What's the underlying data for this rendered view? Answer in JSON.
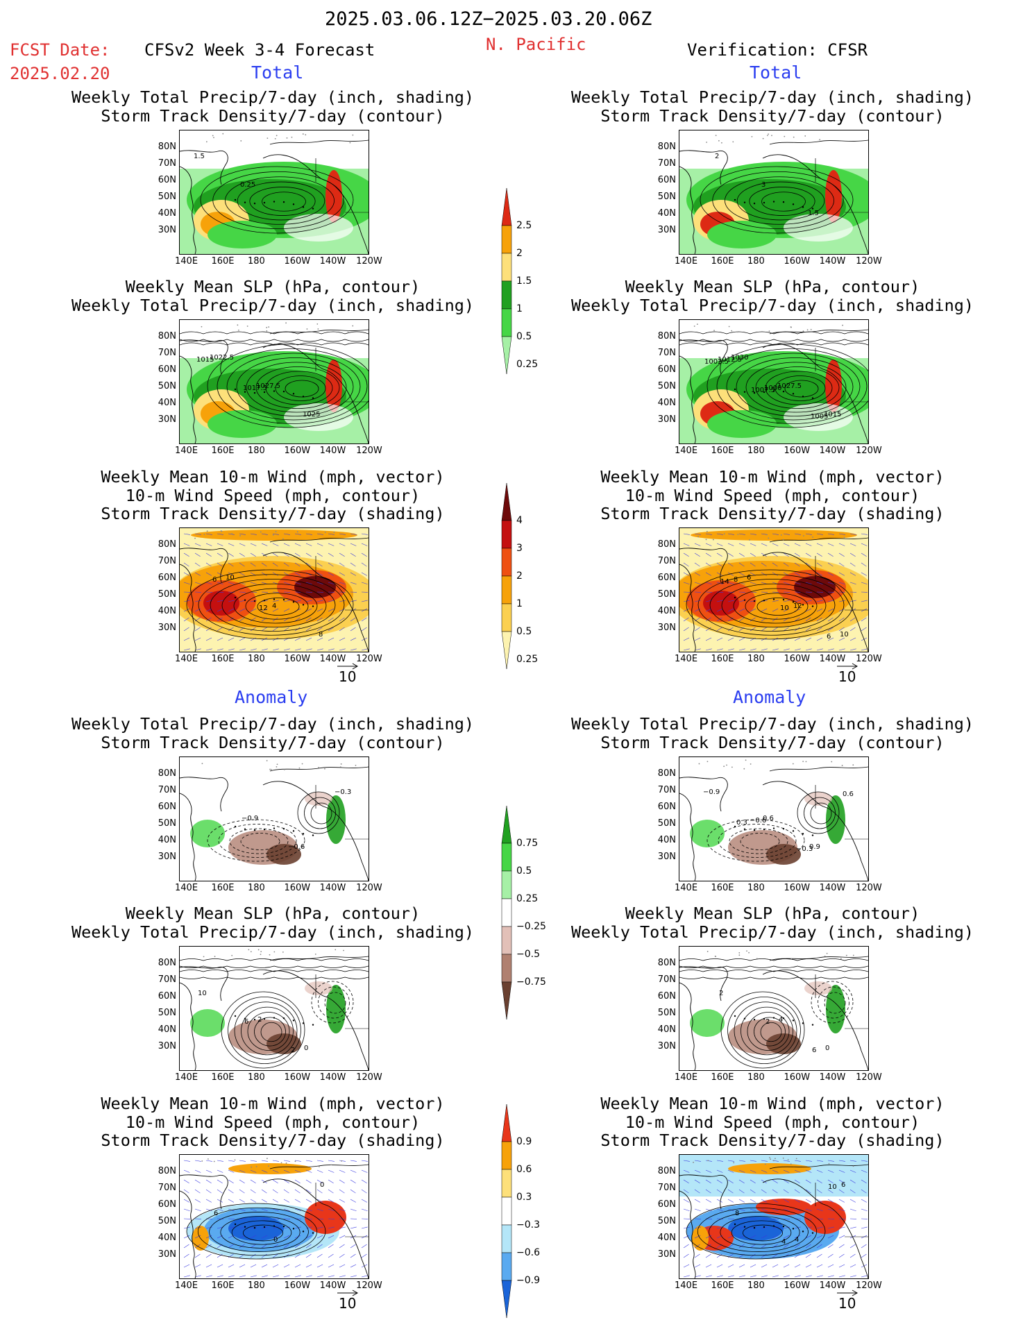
{
  "header": {
    "period": "2025.03.06.12Z−2025.03.20.06Z",
    "fcst_label": "FCST Date:",
    "fcst_date": "2025.02.20",
    "product": "CFSv2 Week 3-4 Forecast",
    "region": "N. Pacific",
    "verification": "Verification: CFSR"
  },
  "sections": {
    "total": "Total",
    "anomaly": "Anomaly"
  },
  "titles": {
    "precip_storm": [
      "Weekly Total Precip/7-day (inch, shading)",
      "Storm Track Density/7-day (contour)"
    ],
    "slp_precip": [
      "Weekly Mean SLP (hPa, contour)",
      "Weekly Total Precip/7-day (inch, shading)"
    ],
    "wind_storm": [
      "Weekly Mean 10-m Wind (mph, vector)",
      "10-m Wind Speed (mph, contour)",
      "Storm Track Density/7-day (shading)"
    ]
  },
  "axes": {
    "lat_labels": [
      "80N",
      "70N",
      "60N",
      "50N",
      "40N",
      "30N"
    ],
    "lon_labels": [
      "140E",
      "160E",
      "180",
      "160W",
      "140W",
      "120W"
    ]
  },
  "vector_reference": "10",
  "colorbars": {
    "precip_total": {
      "labels": [
        "2.5",
        "2",
        "1.5",
        "1",
        "0.5",
        "0.25"
      ],
      "colors": [
        "#dd2a14",
        "#f7a20a",
        "#fde07a",
        "#20a020",
        "#46d646",
        "#a6f0a6"
      ]
    },
    "storm_total": {
      "labels": [
        "4",
        "3",
        "2",
        "1",
        "0.5",
        "0.25"
      ],
      "colors": [
        "#6e0a0a",
        "#c41010",
        "#ef5012",
        "#f7a20a",
        "#fbd050",
        "#fdf3b0"
      ]
    },
    "precip_anomaly": {
      "labels": [
        "0.75",
        "0.5",
        "0.25",
        "−0.25",
        "−0.5",
        "−0.75"
      ],
      "colors": [
        "#20a020",
        "#46d646",
        "#a6f0a6",
        "#ffffff",
        "#e2c0b8",
        "#b08070",
        "#6a4030"
      ]
    },
    "storm_anomaly": {
      "labels": [
        "0.9",
        "0.6",
        "0.3",
        "−0.3",
        "−0.6",
        "−0.9"
      ],
      "colors": [
        "#e8361a",
        "#f7a20a",
        "#fde07a",
        "#ffffff",
        "#b4e6f8",
        "#5aaaf0",
        "#1a64d8"
      ]
    },
    "dash_key": "—"
  },
  "panel_labels": {
    "f1": [
      "1.5",
      "0.25"
    ],
    "v1": [
      "2",
      "3",
      "1.5"
    ],
    "f2": [
      "1022.5",
      "1027.5",
      "1025",
      "1015",
      "1017.5"
    ],
    "v2": [
      "1030",
      "1027.5",
      "1015",
      "1012.5",
      "1000",
      "1005",
      "1002.5",
      "1007.5"
    ],
    "f3": [
      "10",
      "4",
      "8",
      "6",
      "12"
    ],
    "v3": [
      "6",
      "12",
      "10",
      "8",
      "10",
      "6",
      "14"
    ],
    "f4": [
      "−0.9",
      "−0.6",
      "−0.3"
    ],
    "v4": [
      "0.6",
      "0.9",
      "−0.9",
      "−0.6",
      "−0.3",
      "0.6",
      "0.3"
    ],
    "f5": [
      "2",
      "0",
      "10",
      "6",
      "2"
    ],
    "v5": [
      "4",
      "0",
      "2",
      "2",
      "6"
    ],
    "f6": [
      "0",
      "0",
      "6"
    ],
    "v6": [
      "4",
      "6",
      "8",
      "4",
      "10"
    ]
  }
}
